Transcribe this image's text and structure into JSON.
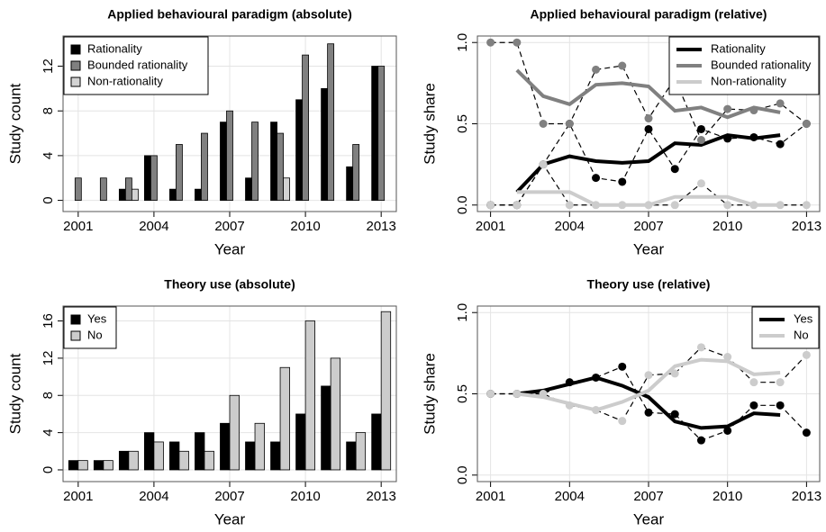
{
  "chart_data": [
    {
      "type": "bar",
      "title": "Applied behavioural paradigm (absolute)",
      "x_label": "Year",
      "y_label": "Study count",
      "x": [
        2001,
        2002,
        2003,
        2004,
        2005,
        2006,
        2007,
        2008,
        2009,
        2010,
        2011,
        2012,
        2013
      ],
      "xlim": [
        2000.4,
        2013.6
      ],
      "xticks": [
        2001,
        2004,
        2007,
        2010,
        2013
      ],
      "ylim": [
        -1,
        14.7
      ],
      "yticks": [
        0,
        4,
        8,
        12
      ],
      "grid": true,
      "legend": "top-left",
      "series": [
        {
          "name": "Rationality",
          "color": "#000000",
          "values": [
            0,
            0,
            1,
            4,
            1,
            1,
            7,
            2,
            7,
            9,
            10,
            3,
            12
          ]
        },
        {
          "name": "Bounded rationality",
          "color": "#808080",
          "values": [
            2,
            2,
            2,
            4,
            5,
            6,
            8,
            7,
            6,
            13,
            14,
            5,
            12
          ]
        },
        {
          "name": "Non-rationality",
          "color": "#d3d3d3",
          "values": [
            0,
            0,
            1,
            0,
            0,
            0,
            0,
            0,
            2,
            0,
            0,
            0,
            0
          ]
        }
      ]
    },
    {
      "type": "line",
      "title": "Applied behavioural paradigm (relative)",
      "x_label": "Year",
      "y_label": "Study share",
      "x": [
        2001,
        2002,
        2003,
        2004,
        2005,
        2006,
        2007,
        2008,
        2009,
        2010,
        2011,
        2012,
        2013
      ],
      "xlim": [
        2000.5,
        2013.5
      ],
      "xticks": [
        2001,
        2004,
        2007,
        2010,
        2013
      ],
      "ylim": [
        -0.04,
        1.04
      ],
      "yticks": [
        {
          "value": 0,
          "label": "0.0"
        },
        0.5,
        {
          "value": 1,
          "label": "1.0"
        }
      ],
      "grid": true,
      "legend": "top-right",
      "series": [
        {
          "name": "Rationality",
          "color": "#000000",
          "values": [
            0,
            0,
            0.25,
            0.5,
            0.167,
            0.143,
            0.467,
            0.222,
            0.467,
            0.409,
            0.417,
            0.375,
            0.5
          ],
          "trend": [
            null,
            0.08,
            0.25,
            0.3,
            0.27,
            0.26,
            0.27,
            0.38,
            0.37,
            0.43,
            0.41,
            0.43,
            null
          ]
        },
        {
          "name": "Bounded rationality",
          "color": "#808080",
          "values": [
            1,
            1,
            0.5,
            0.5,
            0.833,
            0.857,
            0.533,
            0.778,
            0.4,
            0.591,
            0.583,
            0.625,
            0.5
          ],
          "trend": [
            null,
            0.83,
            0.67,
            0.62,
            0.74,
            0.75,
            0.73,
            0.58,
            0.6,
            0.54,
            0.6,
            0.57,
            null
          ]
        },
        {
          "name": "Non-rationality",
          "color": "#cccccc",
          "values": [
            0,
            0,
            0.25,
            0,
            0,
            0,
            0,
            0,
            0.133,
            0,
            0,
            0,
            0
          ],
          "trend": [
            null,
            0.08,
            0.08,
            0.08,
            0,
            0,
            0,
            0.05,
            0.05,
            0.05,
            0,
            0,
            null
          ]
        }
      ]
    },
    {
      "type": "bar",
      "title": "Theory use (absolute)",
      "x_label": "Year",
      "y_label": "Study count",
      "x": [
        2001,
        2002,
        2003,
        2004,
        2005,
        2006,
        2007,
        2008,
        2009,
        2010,
        2011,
        2012,
        2013
      ],
      "xlim": [
        2000.4,
        2013.6
      ],
      "xticks": [
        2001,
        2004,
        2007,
        2010,
        2013
      ],
      "ylim": [
        -1.26,
        17.6
      ],
      "yticks": [
        0,
        4,
        8,
        12,
        16
      ],
      "grid": true,
      "legend": "top-left",
      "series": [
        {
          "name": "Yes",
          "color": "#000000",
          "values": [
            1,
            1,
            2,
            4,
            3,
            4,
            5,
            3,
            3,
            6,
            9,
            3,
            6
          ]
        },
        {
          "name": "No",
          "color": "#cccccc",
          "values": [
            1,
            1,
            2,
            3,
            2,
            2,
            8,
            5,
            11,
            16,
            12,
            4,
            17
          ]
        }
      ]
    },
    {
      "type": "line",
      "title": "Theory use (relative)",
      "x_label": "Year",
      "y_label": "Study share",
      "x": [
        2001,
        2002,
        2003,
        2004,
        2005,
        2006,
        2007,
        2008,
        2009,
        2010,
        2011,
        2012,
        2013
      ],
      "xlim": [
        2000.5,
        2013.5
      ],
      "xticks": [
        2001,
        2004,
        2007,
        2010,
        2013
      ],
      "ylim": [
        -0.04,
        1.04
      ],
      "yticks": [
        {
          "value": 0,
          "label": "0.0"
        },
        0.5,
        {
          "value": 1,
          "label": "1.0"
        }
      ],
      "grid": true,
      "legend": "top-right",
      "series": [
        {
          "name": "Yes",
          "color": "#000000",
          "values": [
            0.5,
            0.5,
            0.5,
            0.571,
            0.6,
            0.667,
            0.385,
            0.375,
            0.214,
            0.273,
            0.429,
            0.429,
            0.261
          ],
          "trend": [
            null,
            0.5,
            0.52,
            0.56,
            0.6,
            0.55,
            0.48,
            0.33,
            0.29,
            0.3,
            0.38,
            0.37,
            null
          ]
        },
        {
          "name": "No",
          "color": "#cccccc",
          "values": [
            0.5,
            0.5,
            0.5,
            0.429,
            0.4,
            0.333,
            0.615,
            0.625,
            0.786,
            0.727,
            0.571,
            0.571,
            0.739
          ],
          "trend": [
            null,
            0.5,
            0.48,
            0.44,
            0.4,
            0.45,
            0.52,
            0.67,
            0.71,
            0.7,
            0.62,
            0.63,
            null
          ]
        }
      ]
    }
  ]
}
